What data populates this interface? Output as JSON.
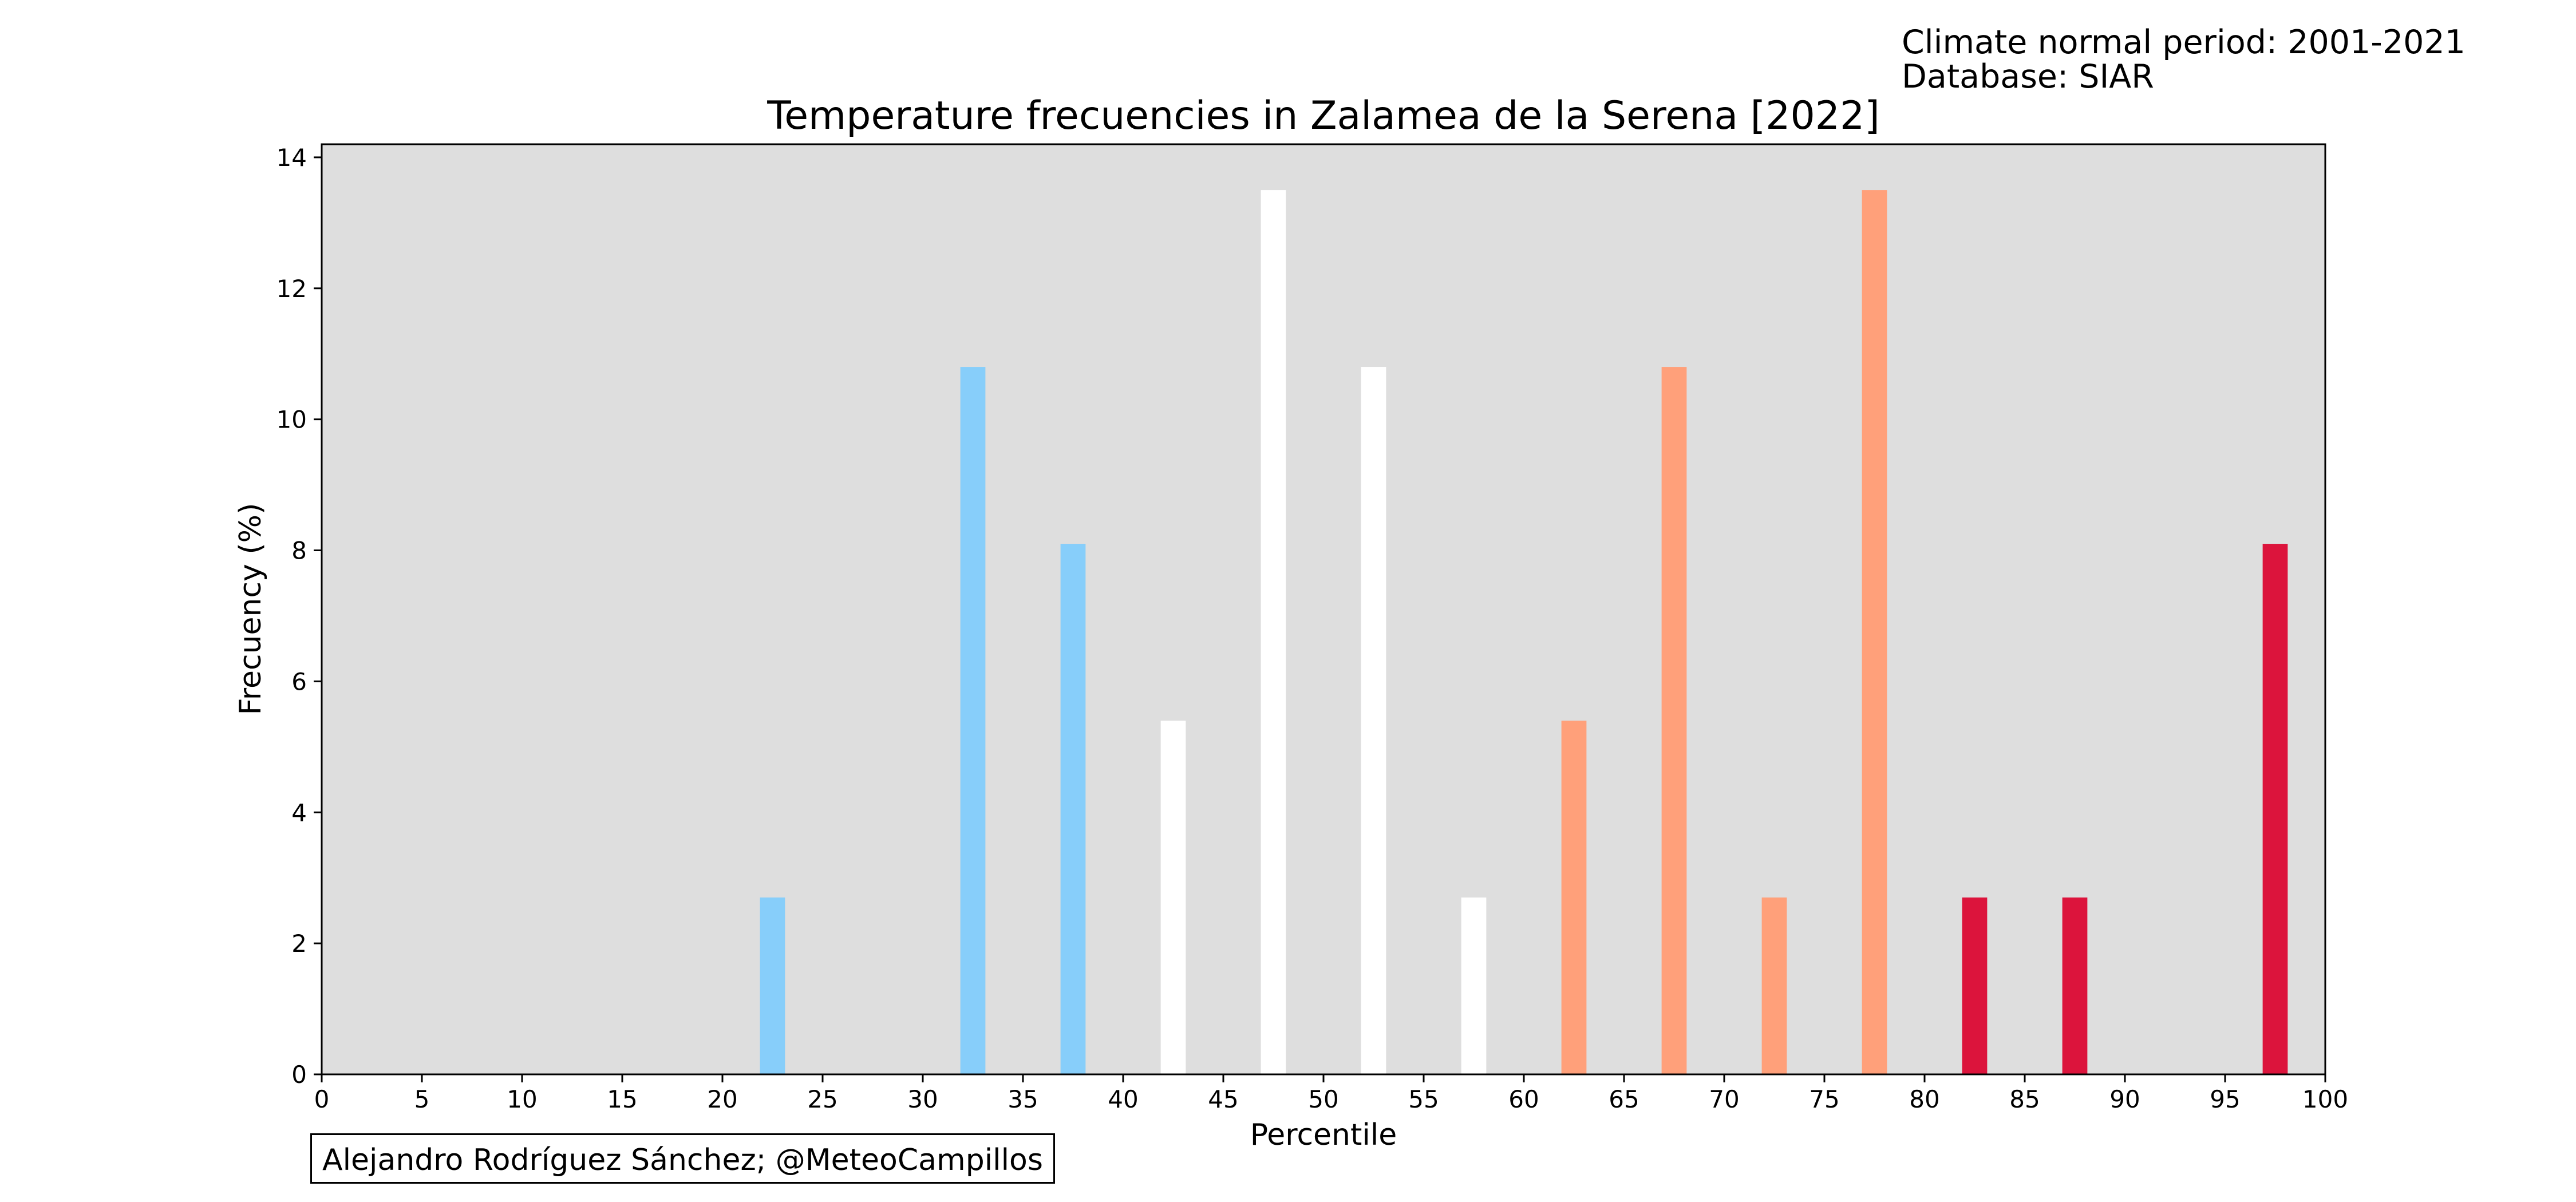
{
  "header": {
    "climate_normal": "Climate normal period: 2001-2021",
    "database": "Database: SIAR"
  },
  "credit": "Alejandro Rodríguez Sánchez; @MeteoCampillos",
  "colors": {
    "plot_background": "#dedede",
    "cold": "#87cefa",
    "normal": "#ffffff",
    "warm": "#ffa07a",
    "hot": "#dc143c"
  },
  "chart_data": {
    "type": "bar",
    "title": "Temperature frecuencies in Zalamea de la Serena [2022]",
    "xlabel": "Percentile",
    "ylabel": "Frecuency (%)",
    "xlim": [
      0,
      100
    ],
    "ylim": [
      0,
      14.2
    ],
    "xticks": [
      0,
      5,
      10,
      15,
      20,
      25,
      30,
      35,
      40,
      45,
      50,
      55,
      60,
      65,
      70,
      75,
      80,
      85,
      90,
      95,
      100
    ],
    "yticks": [
      0,
      2,
      4,
      6,
      8,
      10,
      12,
      14
    ],
    "grid": false,
    "legend": "none",
    "bar_width": 1.25,
    "bars": [
      {
        "x": 22.5,
        "value": 2.7,
        "color": "#87cefa"
      },
      {
        "x": 32.5,
        "value": 10.8,
        "color": "#87cefa"
      },
      {
        "x": 37.5,
        "value": 8.1,
        "color": "#87cefa"
      },
      {
        "x": 42.5,
        "value": 5.4,
        "color": "#ffffff"
      },
      {
        "x": 47.5,
        "value": 13.5,
        "color": "#ffffff"
      },
      {
        "x": 52.5,
        "value": 10.8,
        "color": "#ffffff"
      },
      {
        "x": 57.5,
        "value": 2.7,
        "color": "#ffffff"
      },
      {
        "x": 62.5,
        "value": 5.4,
        "color": "#ffa07a"
      },
      {
        "x": 67.5,
        "value": 10.8,
        "color": "#ffa07a"
      },
      {
        "x": 72.5,
        "value": 2.7,
        "color": "#ffa07a"
      },
      {
        "x": 77.5,
        "value": 13.5,
        "color": "#ffa07a"
      },
      {
        "x": 82.5,
        "value": 2.7,
        "color": "#dc143c"
      },
      {
        "x": 87.5,
        "value": 2.7,
        "color": "#dc143c"
      },
      {
        "x": 97.5,
        "value": 8.1,
        "color": "#dc143c"
      }
    ]
  }
}
